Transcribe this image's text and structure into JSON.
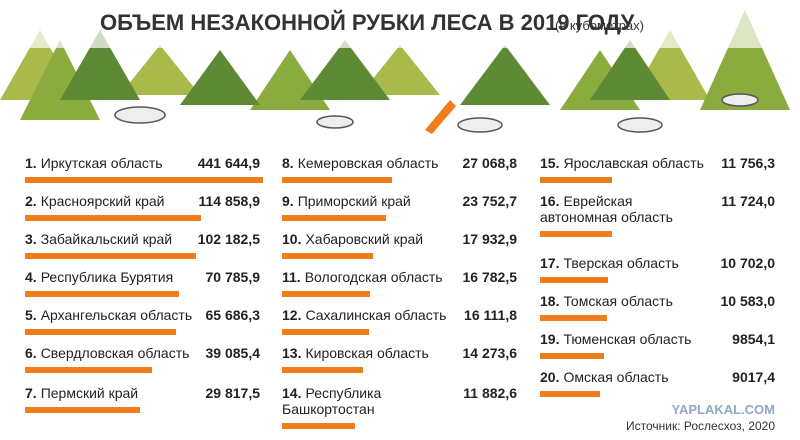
{
  "chart_data": {
    "type": "bar",
    "title": "ОБЪЕМ НЕЗАКОННОЙ РУБКИ ЛЕСА В 2019 ГОДУ",
    "subtitle": "(в кубометрах)",
    "ranks": [
      "1.",
      "2.",
      "3.",
      "4.",
      "5.",
      "6.",
      "7.",
      "8.",
      "9.",
      "10.",
      "11.",
      "12.",
      "13.",
      "14.",
      "15.",
      "16.",
      "17.",
      "18.",
      "19.",
      "20."
    ],
    "categories": [
      "Иркутская область",
      "Красноярский край",
      "Забайкальский край",
      "Республика Бурятия",
      "Архангельская область",
      "Свердловская область",
      "Пермский край",
      "Кемеровская область",
      "Приморский край",
      "Хабаровский край",
      "Вологодская область",
      "Сахалинская область",
      "Кировская область",
      "Республика Башкортостан",
      "Ярославская область",
      "Еврейская автономная область",
      "Тверская область",
      "Томская область",
      "Тюменская область",
      "Омская область"
    ],
    "values": [
      441644.9,
      114858.9,
      102182.5,
      70785.9,
      65686.3,
      39085.4,
      29817.5,
      27068.8,
      23752.7,
      17932.9,
      16782.5,
      16111.8,
      14273.6,
      11882.6,
      11756.3,
      11724.0,
      10702.0,
      10583.0,
      9854.1,
      9017.4
    ],
    "value_labels": [
      "441 644,9",
      "114 858,9",
      "102 182,5",
      "70 785,9",
      "65 686,3",
      "39 085,4",
      "29 817,5",
      "27 068,8",
      "23 752,7",
      "17 932,9",
      "16 782,5",
      "16 111,8",
      "14 273,6",
      "11 882,6",
      "11 756,3",
      "11 724,0",
      "10 702,0",
      "10 583,0",
      "9854,1",
      "9017,4"
    ],
    "color": "#ef7d1c",
    "source": "Источник: Рослесхоз, 2020",
    "watermark": "YAPLAKAL.COM"
  }
}
